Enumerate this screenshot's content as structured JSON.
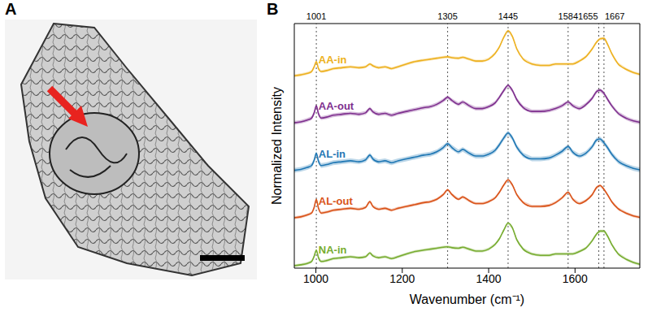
{
  "image_panel": {
    "label": "A"
  },
  "chart_data": {
    "type": "line",
    "panel_label": "B",
    "x_label": "Wavenumber (cm⁻¹)",
    "y_label": "Normalized Intensity",
    "xlim": [
      950,
      1750
    ],
    "xticks": [
      1000,
      1200,
      1400,
      1600
    ],
    "ylim": [
      0,
      5.15
    ],
    "yticks": [],
    "tick_labels": "x",
    "grid": false,
    "reference_lines": [
      1001,
      1305,
      1445,
      1584,
      1655,
      1667
    ],
    "x": [
      950,
      965,
      980,
      990,
      996,
      1001,
      1006,
      1012,
      1025,
      1040,
      1060,
      1080,
      1100,
      1115,
      1125,
      1132,
      1145,
      1160,
      1175,
      1190,
      1210,
      1230,
      1250,
      1265,
      1280,
      1295,
      1305,
      1315,
      1330,
      1340,
      1355,
      1370,
      1385,
      1400,
      1415,
      1425,
      1435,
      1445,
      1455,
      1465,
      1480,
      1500,
      1520,
      1540,
      1555,
      1570,
      1584,
      1595,
      1610,
      1625,
      1640,
      1650,
      1658,
      1667,
      1675,
      1685,
      1700,
      1720,
      1735,
      1750
    ],
    "series": [
      {
        "name": "AA-in",
        "color": "#edb120",
        "error": 0.03,
        "values": [
          4.05,
          4.07,
          4.1,
          4.14,
          4.24,
          4.35,
          4.2,
          4.14,
          4.16,
          4.2,
          4.22,
          4.24,
          4.22,
          4.24,
          4.3,
          4.26,
          4.22,
          4.24,
          4.2,
          4.24,
          4.3,
          4.35,
          4.38,
          4.4,
          4.42,
          4.44,
          4.45,
          4.43,
          4.42,
          4.44,
          4.4,
          4.36,
          4.36,
          4.4,
          4.52,
          4.66,
          4.86,
          5.0,
          4.88,
          4.62,
          4.4,
          4.3,
          4.27,
          4.27,
          4.3,
          4.3,
          4.3,
          4.3,
          4.36,
          4.45,
          4.62,
          4.76,
          4.83,
          4.84,
          4.72,
          4.52,
          4.3,
          4.18,
          4.12,
          4.08
        ]
      },
      {
        "name": "AA-out",
        "color": "#7e2f8e",
        "error": 0.04,
        "values": [
          3.06,
          3.08,
          3.12,
          3.16,
          3.27,
          3.42,
          3.25,
          3.16,
          3.18,
          3.22,
          3.24,
          3.26,
          3.24,
          3.27,
          3.36,
          3.29,
          3.24,
          3.26,
          3.22,
          3.26,
          3.3,
          3.34,
          3.38,
          3.4,
          3.45,
          3.53,
          3.6,
          3.53,
          3.45,
          3.5,
          3.42,
          3.36,
          3.36,
          3.4,
          3.48,
          3.6,
          3.74,
          3.85,
          3.74,
          3.55,
          3.38,
          3.3,
          3.3,
          3.32,
          3.36,
          3.42,
          3.5,
          3.42,
          3.36,
          3.44,
          3.58,
          3.72,
          3.75,
          3.68,
          3.56,
          3.42,
          3.26,
          3.15,
          3.1,
          3.07
        ]
      },
      {
        "name": "AL-in",
        "color": "#1f77b4",
        "error": 0.05,
        "values": [
          2.06,
          2.08,
          2.12,
          2.16,
          2.27,
          2.42,
          2.25,
          2.16,
          2.18,
          2.22,
          2.24,
          2.26,
          2.24,
          2.28,
          2.38,
          2.3,
          2.24,
          2.26,
          2.22,
          2.26,
          2.3,
          2.34,
          2.38,
          2.4,
          2.45,
          2.54,
          2.62,
          2.54,
          2.45,
          2.5,
          2.42,
          2.36,
          2.36,
          2.4,
          2.48,
          2.6,
          2.74,
          2.85,
          2.74,
          2.55,
          2.38,
          2.3,
          2.3,
          2.32,
          2.38,
          2.46,
          2.56,
          2.44,
          2.36,
          2.42,
          2.56,
          2.7,
          2.72,
          2.64,
          2.54,
          2.4,
          2.25,
          2.15,
          2.1,
          2.07
        ]
      },
      {
        "name": "AL-out",
        "color": "#d95319",
        "error": 0.03,
        "values": [
          1.06,
          1.08,
          1.12,
          1.16,
          1.28,
          1.45,
          1.26,
          1.16,
          1.18,
          1.22,
          1.24,
          1.26,
          1.24,
          1.28,
          1.4,
          1.3,
          1.24,
          1.26,
          1.22,
          1.26,
          1.3,
          1.34,
          1.38,
          1.4,
          1.45,
          1.55,
          1.65,
          1.55,
          1.45,
          1.5,
          1.42,
          1.36,
          1.36,
          1.4,
          1.48,
          1.6,
          1.75,
          1.86,
          1.75,
          1.55,
          1.38,
          1.3,
          1.3,
          1.32,
          1.38,
          1.48,
          1.6,
          1.45,
          1.36,
          1.42,
          1.55,
          1.7,
          1.74,
          1.66,
          1.55,
          1.4,
          1.25,
          1.15,
          1.1,
          1.07
        ]
      },
      {
        "name": "NA-in",
        "color": "#77ac30",
        "error": 0.03,
        "values": [
          0.05,
          0.07,
          0.1,
          0.14,
          0.25,
          0.38,
          0.22,
          0.14,
          0.16,
          0.2,
          0.22,
          0.24,
          0.22,
          0.24,
          0.32,
          0.26,
          0.22,
          0.24,
          0.2,
          0.24,
          0.3,
          0.35,
          0.38,
          0.4,
          0.42,
          0.44,
          0.45,
          0.43,
          0.42,
          0.44,
          0.4,
          0.36,
          0.36,
          0.4,
          0.5,
          0.62,
          0.8,
          0.95,
          0.85,
          0.6,
          0.4,
          0.3,
          0.27,
          0.27,
          0.3,
          0.3,
          0.3,
          0.3,
          0.35,
          0.42,
          0.58,
          0.72,
          0.78,
          0.78,
          0.68,
          0.5,
          0.3,
          0.18,
          0.12,
          0.08
        ]
      }
    ]
  }
}
